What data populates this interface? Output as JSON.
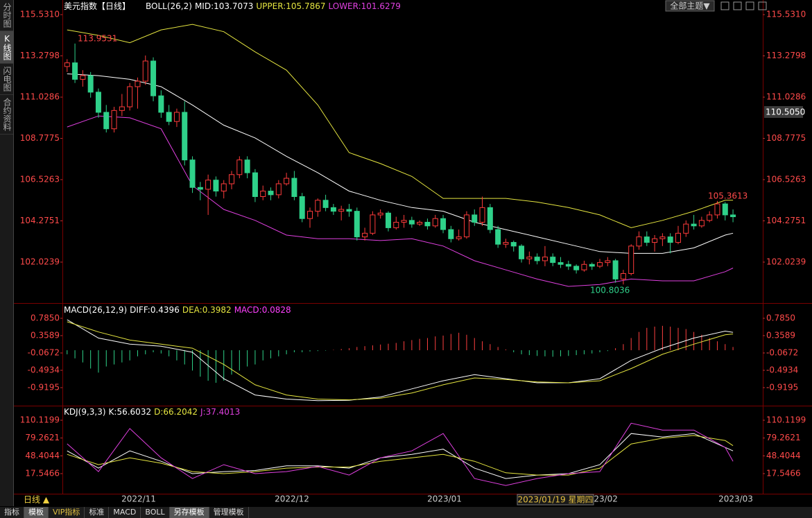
{
  "chart_data": [
    {
      "type": "candlestick",
      "title": "美元指数【日线】",
      "indicator": "BOLL(26,2)",
      "xlim": [
        -0.6,
        88.8
      ],
      "ylim": [
        99.79,
        116.33
      ],
      "yticks": [
        102.0239,
        104.2751,
        106.5263,
        108.7775,
        111.0286,
        113.2798,
        {
          "value": 115.531,
          "label": "115.5310"
        }
      ],
      "up_color": "#ff3b3b",
      "down_color": "#2fd18a",
      "ohlc": [
        [
          112.7,
          113.1,
          112.4,
          112.9
        ],
        [
          112.9,
          113.9531,
          111.8,
          112.0
        ],
        [
          112.0,
          112.5,
          111.6,
          112.2
        ],
        [
          112.2,
          112.4,
          111.0,
          111.3
        ],
        [
          111.3,
          111.5,
          109.9,
          110.2
        ],
        [
          110.2,
          110.6,
          109.1,
          109.3
        ],
        [
          109.3,
          110.5,
          109.1,
          110.3
        ],
        [
          110.3,
          111.2,
          110.0,
          110.5
        ],
        [
          110.5,
          111.8,
          110.3,
          111.6
        ],
        [
          111.6,
          112.1,
          110.4,
          111.9
        ],
        [
          111.9,
          113.3,
          111.7,
          113.0
        ],
        [
          113.0,
          113.2,
          110.8,
          111.1
        ],
        [
          111.1,
          111.4,
          109.9,
          110.2
        ],
        [
          110.2,
          110.6,
          109.5,
          109.7
        ],
        [
          109.7,
          110.4,
          109.4,
          110.2
        ],
        [
          110.2,
          110.8,
          107.3,
          107.6
        ],
        [
          107.6,
          107.8,
          105.8,
          106.1
        ],
        [
          106.1,
          106.4,
          105.4,
          106.0
        ],
        [
          106.0,
          106.8,
          104.6,
          106.5
        ],
        [
          106.5,
          106.7,
          105.6,
          105.9
        ],
        [
          105.9,
          106.5,
          105.5,
          106.3
        ],
        [
          106.3,
          107.0,
          106.0,
          106.8
        ],
        [
          106.8,
          107.8,
          106.6,
          107.6
        ],
        [
          107.6,
          107.8,
          106.6,
          106.9
        ],
        [
          106.9,
          107.1,
          105.3,
          105.6
        ],
        [
          105.6,
          106.2,
          105.4,
          105.9
        ],
        [
          105.9,
          106.1,
          105.4,
          105.7
        ],
        [
          105.7,
          106.5,
          105.5,
          106.3
        ],
        [
          106.3,
          106.9,
          106.2,
          106.6
        ],
        [
          106.6,
          107.0,
          105.4,
          105.6
        ],
        [
          105.6,
          105.8,
          104.2,
          104.4
        ],
        [
          104.4,
          105.0,
          103.9,
          104.8
        ],
        [
          104.8,
          105.5,
          104.5,
          105.4
        ],
        [
          105.4,
          105.7,
          104.8,
          105.0
        ],
        [
          105.0,
          105.2,
          104.6,
          104.8
        ],
        [
          104.8,
          105.1,
          104.3,
          104.9
        ],
        [
          104.9,
          105.2,
          104.5,
          104.8
        ],
        [
          104.8,
          105.0,
          103.2,
          103.4
        ],
        [
          103.4,
          103.9,
          103.2,
          103.6
        ],
        [
          103.6,
          104.8,
          103.5,
          104.6
        ],
        [
          104.6,
          104.9,
          104.4,
          104.7
        ],
        [
          104.7,
          104.8,
          103.7,
          103.9
        ],
        [
          103.9,
          104.5,
          103.8,
          104.2
        ],
        [
          104.2,
          104.6,
          103.9,
          104.3
        ],
        [
          104.3,
          104.5,
          103.9,
          104.1
        ],
        [
          104.1,
          104.3,
          104.0,
          104.2
        ],
        [
          104.2,
          104.4,
          103.8,
          104.0
        ],
        [
          104.0,
          104.6,
          103.9,
          104.4
        ],
        [
          104.4,
          104.6,
          103.6,
          103.8
        ],
        [
          103.8,
          104.0,
          103.1,
          103.3
        ],
        [
          103.3,
          103.8,
          103.2,
          103.4
        ],
        [
          103.4,
          104.8,
          103.3,
          104.6
        ],
        [
          104.6,
          104.9,
          104.0,
          104.2
        ],
        [
          104.2,
          105.6,
          104.0,
          105.0
        ],
        [
          105.0,
          105.2,
          103.6,
          103.8
        ],
        [
          103.8,
          104.0,
          102.8,
          103.0
        ],
        [
          103.0,
          103.3,
          102.8,
          103.1
        ],
        [
          103.1,
          103.2,
          102.6,
          102.9
        ],
        [
          102.9,
          103.0,
          102.0,
          102.2
        ],
        [
          102.2,
          102.6,
          101.9,
          102.3
        ],
        [
          102.3,
          102.5,
          101.9,
          102.1
        ],
        [
          102.1,
          102.9,
          101.8,
          102.3
        ],
        [
          102.3,
          102.5,
          101.8,
          102.0
        ],
        [
          102.0,
          102.3,
          101.7,
          101.9
        ],
        [
          101.9,
          102.1,
          101.6,
          101.8
        ],
        [
          101.8,
          101.9,
          101.4,
          101.6
        ],
        [
          101.6,
          102.1,
          101.5,
          101.9
        ],
        [
          101.9,
          102.0,
          101.6,
          101.8
        ],
        [
          101.8,
          102.2,
          101.7,
          102.0
        ],
        [
          102.0,
          102.3,
          101.8,
          102.1
        ],
        [
          102.1,
          102.2,
          100.9,
          101.1
        ],
        [
          101.1,
          101.6,
          100.8036,
          101.4
        ],
        [
          101.4,
          103.0,
          101.3,
          102.9
        ],
        [
          102.9,
          103.7,
          102.7,
          103.4
        ],
        [
          103.4,
          103.7,
          102.9,
          103.1
        ],
        [
          103.1,
          103.5,
          102.6,
          103.3
        ],
        [
          103.3,
          103.6,
          102.9,
          103.4
        ],
        [
          103.4,
          103.6,
          102.5,
          103.1
        ],
        [
          103.1,
          104.0,
          103.0,
          103.6
        ],
        [
          103.6,
          104.3,
          103.4,
          104.1
        ],
        [
          104.1,
          104.6,
          103.8,
          104.0
        ],
        [
          104.0,
          104.5,
          103.9,
          104.3
        ],
        [
          104.3,
          104.8,
          104.2,
          104.6
        ],
        [
          104.6,
          105.3613,
          104.4,
          105.2
        ],
        [
          105.2,
          105.3,
          104.3,
          104.6
        ],
        [
          104.6,
          104.9,
          104.2,
          104.5
        ]
      ],
      "series": [
        {
          "name": "MID:103.7073",
          "color": "#ffffff",
          "x": [
            0,
            4,
            8,
            12,
            16,
            20,
            24,
            28,
            32,
            36,
            40,
            44,
            48,
            52,
            56,
            60,
            64,
            68,
            72,
            76,
            80,
            84,
            85
          ],
          "values": [
            112.3,
            112.2,
            112.0,
            111.6,
            110.6,
            109.5,
            108.8,
            107.8,
            106.9,
            105.9,
            105.4,
            105.0,
            104.8,
            104.2,
            103.8,
            103.4,
            103.0,
            102.6,
            102.5,
            102.5,
            102.8,
            103.5,
            103.6
          ]
        },
        {
          "name": "UPPER:105.7867",
          "color": "#e6e640",
          "x": [
            0,
            4,
            8,
            12,
            16,
            20,
            24,
            28,
            32,
            36,
            40,
            44,
            48,
            52,
            56,
            60,
            64,
            68,
            72,
            76,
            80,
            84,
            85
          ],
          "values": [
            114.7,
            114.4,
            114.0,
            114.7,
            115.0,
            114.6,
            113.5,
            112.5,
            110.6,
            108.0,
            107.4,
            106.7,
            105.5,
            105.5,
            105.5,
            105.3,
            105.0,
            104.6,
            103.9,
            104.3,
            104.8,
            105.4,
            105.4
          ]
        },
        {
          "name": "LOWER:101.6279",
          "color": "#e040e0",
          "x": [
            0,
            4,
            8,
            12,
            16,
            20,
            24,
            28,
            32,
            36,
            40,
            44,
            48,
            52,
            56,
            60,
            64,
            68,
            72,
            76,
            80,
            84,
            85
          ],
          "values": [
            109.4,
            110.0,
            109.9,
            109.3,
            106.2,
            104.9,
            104.3,
            103.5,
            103.3,
            103.3,
            103.2,
            103.3,
            102.9,
            102.1,
            101.6,
            101.1,
            100.7,
            100.8,
            101.1,
            101.0,
            101.0,
            101.5,
            101.7
          ]
        }
      ]
    },
    {
      "type": "macd",
      "title": "MACD(26,12,9)",
      "xlim": [
        -0.6,
        88.8
      ],
      "ylim": [
        -1.3627,
        1.109
      ],
      "yticks": [
        {
          "value": 0.785,
          "label": "0.7850"
        },
        0.3589,
        -0.0672,
        -0.4934,
        -0.9195
      ],
      "series": [
        {
          "name": "DIFF:0.4396",
          "color": "#ffffff",
          "x": [
            0,
            4,
            8,
            12,
            16,
            20,
            24,
            28,
            32,
            36,
            40,
            44,
            48,
            52,
            56,
            60,
            64,
            68,
            72,
            76,
            80,
            84,
            85
          ],
          "values": [
            0.75,
            0.3,
            0.15,
            0.1,
            -0.05,
            -0.7,
            -1.1,
            -1.2,
            -1.24,
            -1.23,
            -1.15,
            -0.95,
            -0.75,
            -0.6,
            -0.7,
            -0.8,
            -0.8,
            -0.7,
            -0.25,
            0.05,
            0.3,
            0.47,
            0.44
          ]
        },
        {
          "name": "DEA:0.3982",
          "color": "#e6e640",
          "x": [
            0,
            4,
            8,
            12,
            16,
            20,
            24,
            28,
            32,
            36,
            40,
            44,
            48,
            52,
            56,
            60,
            64,
            68,
            72,
            76,
            80,
            84,
            85
          ],
          "values": [
            0.7,
            0.45,
            0.25,
            0.15,
            0.05,
            -0.35,
            -0.85,
            -1.1,
            -1.2,
            -1.22,
            -1.18,
            -1.05,
            -0.85,
            -0.68,
            -0.72,
            -0.78,
            -0.8,
            -0.75,
            -0.45,
            -0.1,
            0.15,
            0.38,
            0.4
          ]
        },
        {
          "name": "MACD:0.0828",
          "color": "#ff40ff",
          "up_color": "#ff4040",
          "down_color": "#2fd48a",
          "values": [
            -0.1,
            -0.2,
            -0.3,
            -0.45,
            -0.55,
            -0.4,
            -0.35,
            -0.3,
            -0.25,
            -0.15,
            -0.1,
            -0.05,
            -0.08,
            -0.15,
            -0.25,
            -0.35,
            -0.5,
            -0.65,
            -0.75,
            -0.8,
            -0.75,
            -0.6,
            -0.5,
            -0.4,
            -0.35,
            -0.25,
            -0.2,
            -0.15,
            -0.1,
            -0.05,
            -0.05,
            -0.03,
            -0.02,
            -0.01,
            0.01,
            0.03,
            0.05,
            0.08,
            0.1,
            0.12,
            0.14,
            0.16,
            0.18,
            0.22,
            0.25,
            0.28,
            0.3,
            0.34,
            0.36,
            0.4,
            0.43,
            0.38,
            0.3,
            0.22,
            0.15,
            0.08,
            0.02,
            -0.05,
            -0.1,
            -0.12,
            -0.14,
            -0.15,
            -0.16,
            -0.15,
            -0.14,
            -0.12,
            -0.1,
            -0.08,
            -0.05,
            -0.02,
            0.05,
            0.15,
            0.3,
            0.45,
            0.55,
            0.58,
            0.6,
            0.58,
            0.55,
            0.52,
            0.45,
            0.38,
            0.3,
            0.22,
            0.15,
            0.08
          ]
        }
      ]
    },
    {
      "type": "line",
      "title": "KDJ(9,3,3)",
      "xlim": [
        -0.6,
        88.8
      ],
      "ylim": [
        -17.32,
        131.76
      ],
      "yticks": [
        110.1199,
        79.2621,
        48.4044,
        17.5466
      ],
      "series": [
        {
          "name": "K:56.6032",
          "color": "#ffffff",
          "x": [
            0,
            4,
            8,
            12,
            16,
            20,
            24,
            28,
            32,
            36,
            40,
            44,
            48,
            52,
            56,
            60,
            64,
            68,
            72,
            76,
            80,
            84,
            85
          ],
          "values": [
            57,
            27,
            57,
            39,
            17.5,
            21,
            23,
            31,
            31,
            27,
            45,
            51,
            60,
            27,
            9,
            15,
            17.5,
            33,
            87,
            81,
            87,
            63,
            57
          ]
        },
        {
          "name": "D:66.2042",
          "color": "#e6e640",
          "x": [
            0,
            4,
            8,
            12,
            16,
            20,
            24,
            28,
            32,
            36,
            40,
            44,
            48,
            52,
            56,
            60,
            64,
            68,
            72,
            76,
            80,
            84,
            85
          ],
          "values": [
            51,
            33,
            45,
            35.6,
            21,
            17.5,
            21,
            27,
            29,
            29,
            39,
            45,
            51,
            39,
            19,
            15,
            15,
            27,
            69,
            79,
            83.7,
            75,
            66
          ]
        },
        {
          "name": "J:37.4013",
          "color": "#e040e0",
          "x": [
            0,
            4,
            8,
            12,
            16,
            20,
            24,
            28,
            32,
            36,
            40,
            44,
            48,
            52,
            56,
            60,
            64,
            68,
            72,
            76,
            80,
            84,
            85
          ],
          "values": [
            69.2,
            21,
            95.7,
            45,
            9,
            33,
            17.5,
            21,
            30,
            15,
            45,
            57,
            87,
            9,
            -3,
            9,
            17.5,
            21,
            105,
            93,
            93,
            63,
            39
          ]
        }
      ]
    }
  ],
  "ui": {
    "sidebar": [
      "分时图",
      "K线图",
      "闪电图",
      "合约资料"
    ],
    "theme_button": "全部主题▼",
    "current_price": "110.5050",
    "annotations": [
      "113.9531",
      "100.8036",
      "105.3613"
    ],
    "x_labels": [
      "2022/11",
      "2022/12",
      "2023/01",
      "2023/02",
      "2023/03"
    ],
    "crosshair_label": "2023/01/19 星期四",
    "period": "日线 ▲",
    "tabs": [
      "指标",
      "模板",
      "VIP指标",
      "标准",
      "MACD",
      "BOLL",
      "另存模板",
      "管理模板"
    ]
  }
}
